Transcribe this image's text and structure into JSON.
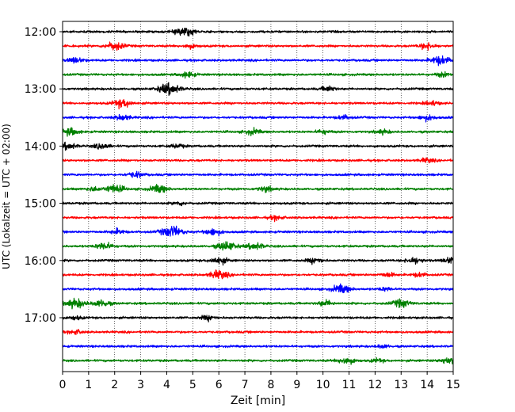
{
  "chart_data": {
    "type": "line",
    "title": "",
    "xlabel": "Zeit  [min]",
    "ylabel": "UTC (Lokalzeit = UTC + 02:00)",
    "xlim": [
      0,
      15
    ],
    "x_ticks": [
      "0",
      "1",
      "2",
      "3",
      "4",
      "5",
      "6",
      "7",
      "8",
      "9",
      "10",
      "11",
      "12",
      "13",
      "14",
      "15"
    ],
    "y_ticks": [
      "12:00",
      "13:00",
      "14:00",
      "15:00",
      "16:00",
      "17:00"
    ],
    "grid": "vertical dotted at each minute",
    "trace_interval_min": 15,
    "colors": [
      "#000000",
      "#ff0000",
      "#0000ff",
      "#008000"
    ],
    "series": [
      {
        "start": "12:00",
        "color": "#000000",
        "events": [
          [
            4.8,
            1.0
          ],
          [
            4.5,
            0.6
          ]
        ]
      },
      {
        "start": "12:15",
        "color": "#ff0000",
        "events": [
          [
            2.0,
            1.2
          ],
          [
            14.0,
            0.9
          ],
          [
            4.9,
            0.6
          ]
        ]
      },
      {
        "start": "12:30",
        "color": "#0000ff",
        "events": [
          [
            14.5,
            1.3
          ],
          [
            0.5,
            0.8
          ]
        ]
      },
      {
        "start": "12:45",
        "color": "#008000",
        "events": [
          [
            4.8,
            0.8
          ],
          [
            14.6,
            0.6
          ]
        ]
      },
      {
        "start": "13:00",
        "color": "#000000",
        "events": [
          [
            4.1,
            1.6
          ],
          [
            10.2,
            0.7
          ]
        ]
      },
      {
        "start": "13:15",
        "color": "#ff0000",
        "events": [
          [
            2.3,
            1.2
          ],
          [
            14.2,
            0.6
          ]
        ]
      },
      {
        "start": "13:30",
        "color": "#0000ff",
        "events": [
          [
            2.3,
            0.8
          ],
          [
            14.0,
            0.8
          ],
          [
            10.8,
            0.6
          ]
        ]
      },
      {
        "start": "13:45",
        "color": "#008000",
        "events": [
          [
            0.3,
            1.0
          ],
          [
            7.3,
            0.8
          ],
          [
            10.0,
            0.6
          ],
          [
            12.3,
            0.6
          ]
        ]
      },
      {
        "start": "14:00",
        "color": "#000000",
        "events": [
          [
            0.2,
            1.0
          ],
          [
            1.5,
            0.8
          ],
          [
            4.4,
            0.6
          ]
        ]
      },
      {
        "start": "14:15",
        "color": "#ff0000",
        "events": [
          [
            14.0,
            0.6
          ]
        ]
      },
      {
        "start": "14:30",
        "color": "#0000ff",
        "events": [
          [
            2.8,
            0.8
          ]
        ]
      },
      {
        "start": "14:45",
        "color": "#008000",
        "events": [
          [
            2.0,
            1.2
          ],
          [
            3.7,
            1.1
          ],
          [
            1.2,
            0.6
          ],
          [
            7.8,
            0.7
          ]
        ]
      },
      {
        "start": "15:00",
        "color": "#000000",
        "events": [
          [
            4.5,
            0.5
          ]
        ]
      },
      {
        "start": "15:15",
        "color": "#ff0000",
        "events": [
          [
            8.2,
            0.6
          ]
        ]
      },
      {
        "start": "15:30",
        "color": "#0000ff",
        "events": [
          [
            4.2,
            1.6
          ],
          [
            5.8,
            1.0
          ],
          [
            2.1,
            0.7
          ]
        ]
      },
      {
        "start": "15:45",
        "color": "#008000",
        "events": [
          [
            6.3,
            1.3
          ],
          [
            7.4,
            1.0
          ],
          [
            1.6,
            1.0
          ]
        ]
      },
      {
        "start": "16:00",
        "color": "#000000",
        "events": [
          [
            6.0,
            1.0
          ],
          [
            9.7,
            0.8
          ],
          [
            13.5,
            0.9
          ],
          [
            15.0,
            1.2
          ]
        ]
      },
      {
        "start": "16:15",
        "color": "#ff0000",
        "events": [
          [
            6.0,
            1.2
          ],
          [
            12.5,
            0.6
          ],
          [
            13.7,
            0.6
          ]
        ]
      },
      {
        "start": "16:30",
        "color": "#0000ff",
        "events": [
          [
            10.7,
            1.2
          ],
          [
            12.4,
            0.5
          ]
        ]
      },
      {
        "start": "16:45",
        "color": "#008000",
        "events": [
          [
            0.5,
            1.3
          ],
          [
            1.5,
            1.0
          ],
          [
            10.1,
            0.8
          ],
          [
            13.0,
            1.1
          ]
        ]
      },
      {
        "start": "17:00",
        "color": "#000000",
        "events": [
          [
            5.6,
            0.7
          ],
          [
            0.5,
            0.5
          ]
        ]
      },
      {
        "start": "17:15",
        "color": "#ff0000",
        "events": [
          [
            0.5,
            0.6
          ]
        ]
      },
      {
        "start": "17:30",
        "color": "#0000ff",
        "events": [
          [
            12.3,
            0.5
          ]
        ]
      },
      {
        "start": "17:45",
        "color": "#008000",
        "events": [
          [
            10.9,
            1.0
          ],
          [
            14.8,
            0.9
          ],
          [
            12.1,
            0.5
          ]
        ]
      }
    ]
  }
}
